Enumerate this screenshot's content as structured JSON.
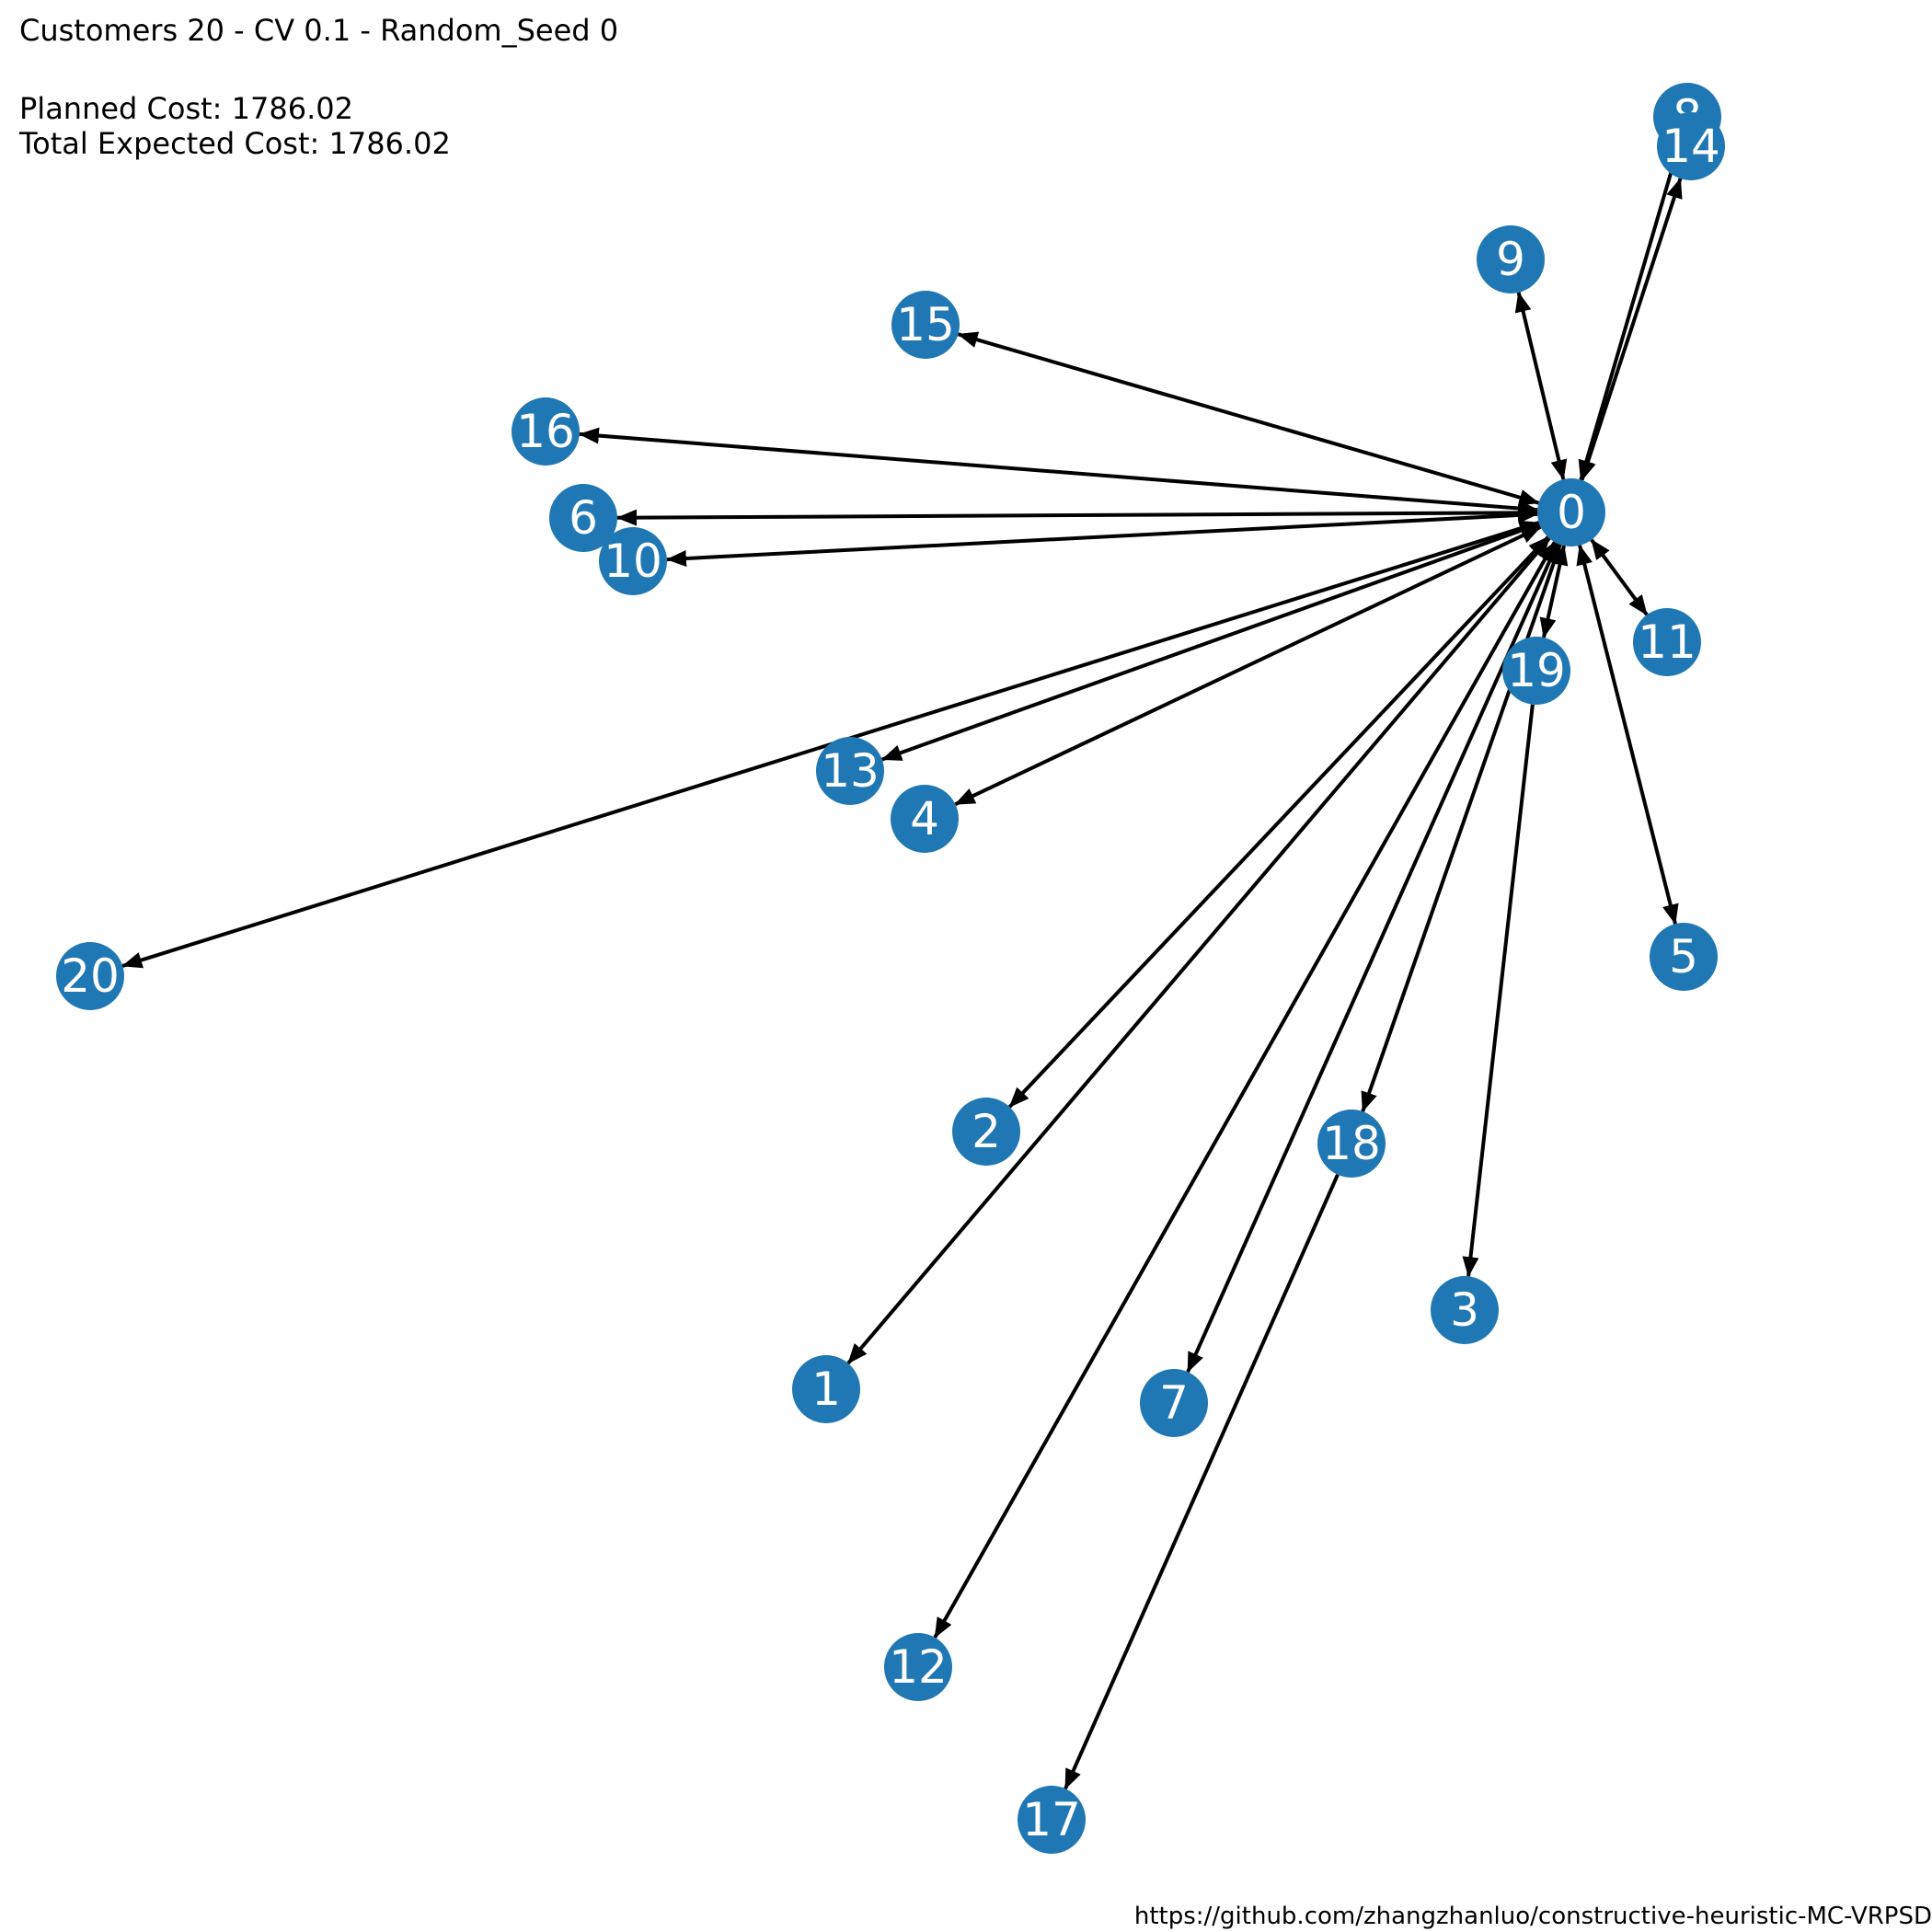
{
  "header": {
    "title": "Customers 20 - CV 0.1 - Random_Seed 0",
    "planned_cost": "Planned Cost: 1786.02",
    "expected_cost": "Total Expected Cost: 1786.02"
  },
  "footer": {
    "url": "https://github.com/zhangzhanluo/constructive-heuristic-MC-VRPSD"
  },
  "colors": {
    "node_fill": "#1f77b4",
    "node_text": "#ffffff",
    "edge": "#000000"
  },
  "graph": {
    "nodes": [
      {
        "id": "0"
      },
      {
        "id": "1"
      },
      {
        "id": "2"
      },
      {
        "id": "3"
      },
      {
        "id": "4"
      },
      {
        "id": "5"
      },
      {
        "id": "6"
      },
      {
        "id": "7"
      },
      {
        "id": "8"
      },
      {
        "id": "9"
      },
      {
        "id": "10"
      },
      {
        "id": "11"
      },
      {
        "id": "12"
      },
      {
        "id": "13"
      },
      {
        "id": "14"
      },
      {
        "id": "15"
      },
      {
        "id": "16"
      },
      {
        "id": "17"
      },
      {
        "id": "18"
      },
      {
        "id": "19"
      },
      {
        "id": "20"
      }
    ],
    "edges": [
      {
        "from": "0",
        "to": "15",
        "bidirectional": true
      },
      {
        "from": "0",
        "to": "16",
        "bidirectional": true
      },
      {
        "from": "0",
        "to": "6",
        "bidirectional": true
      },
      {
        "from": "0",
        "to": "10",
        "bidirectional": true
      },
      {
        "from": "0",
        "to": "9",
        "bidirectional": true
      },
      {
        "from": "0",
        "to": "11",
        "bidirectional": true
      },
      {
        "from": "0",
        "to": "5",
        "bidirectional": true
      },
      {
        "from": "0",
        "to": "14",
        "bidirectional": true
      },
      {
        "from": "8",
        "to": "0",
        "bidirectional": false
      },
      {
        "from": "0",
        "to": "13",
        "bidirectional": true
      },
      {
        "from": "0",
        "to": "4",
        "bidirectional": true
      },
      {
        "from": "0",
        "to": "20",
        "bidirectional": true
      },
      {
        "from": "0",
        "to": "2",
        "bidirectional": true
      },
      {
        "from": "0",
        "to": "1",
        "bidirectional": true
      },
      {
        "from": "0",
        "to": "12",
        "bidirectional": true
      },
      {
        "from": "0",
        "to": "7",
        "bidirectional": true
      },
      {
        "from": "0",
        "to": "18",
        "bidirectional": true
      },
      {
        "from": "0",
        "to": "19",
        "bidirectional": true
      },
      {
        "from": "19",
        "to": "3",
        "bidirectional": false
      },
      {
        "from": "18",
        "to": "17",
        "bidirectional": false
      }
    ]
  }
}
